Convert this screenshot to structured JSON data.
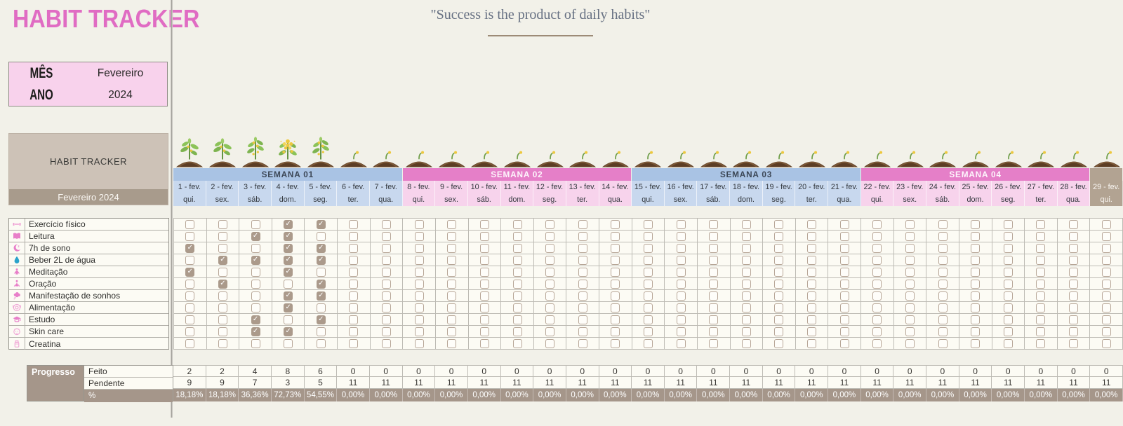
{
  "title": {
    "text": "HABIT TRACKER"
  },
  "quote": {
    "text": "\"Success is the product of daily habits\""
  },
  "month_box": {
    "month_label": "MÊS",
    "month_value": "Fevereiro",
    "year_label": "ANO",
    "year_value": "2024"
  },
  "tracker_box": {
    "title": "HABIT TRACKER",
    "subtitle": "Fevereiro 2024"
  },
  "weeks": [
    {
      "label": "SEMANA 01",
      "span": 7,
      "theme": "blue"
    },
    {
      "label": "SEMANA 02",
      "span": 7,
      "theme": "pink"
    },
    {
      "label": "SEMANA 03",
      "span": 7,
      "theme": "blue"
    },
    {
      "label": "SEMANA 04",
      "span": 7,
      "theme": "pink"
    },
    {
      "label": "",
      "span": 1,
      "theme": "taupe"
    }
  ],
  "days": [
    {
      "date": "1 - fev.",
      "dow": "qui.",
      "theme": "blue"
    },
    {
      "date": "2 - fev.",
      "dow": "sex.",
      "theme": "blue"
    },
    {
      "date": "3 - fev.",
      "dow": "sáb.",
      "theme": "blue"
    },
    {
      "date": "4 - fev.",
      "dow": "dom.",
      "theme": "blue"
    },
    {
      "date": "5 - fev.",
      "dow": "seg.",
      "theme": "blue"
    },
    {
      "date": "6 - fev.",
      "dow": "ter.",
      "theme": "blue"
    },
    {
      "date": "7 - fev.",
      "dow": "qua.",
      "theme": "blue"
    },
    {
      "date": "8 - fev.",
      "dow": "qui.",
      "theme": "pink"
    },
    {
      "date": "9 - fev.",
      "dow": "sex.",
      "theme": "pink"
    },
    {
      "date": "10 - fev.",
      "dow": "sáb.",
      "theme": "pink"
    },
    {
      "date": "11 - fev.",
      "dow": "dom.",
      "theme": "pink"
    },
    {
      "date": "12 - fev.",
      "dow": "seg.",
      "theme": "pink"
    },
    {
      "date": "13 - fev.",
      "dow": "ter.",
      "theme": "pink"
    },
    {
      "date": "14 - fev.",
      "dow": "qua.",
      "theme": "pink"
    },
    {
      "date": "15 - fev.",
      "dow": "qui.",
      "theme": "blue"
    },
    {
      "date": "16 - fev.",
      "dow": "sex.",
      "theme": "blue"
    },
    {
      "date": "17 - fev.",
      "dow": "sáb.",
      "theme": "blue"
    },
    {
      "date": "18 - fev.",
      "dow": "dom.",
      "theme": "blue"
    },
    {
      "date": "19 - fev.",
      "dow": "seg.",
      "theme": "blue"
    },
    {
      "date": "20 - fev.",
      "dow": "ter.",
      "theme": "blue"
    },
    {
      "date": "21 - fev.",
      "dow": "qua.",
      "theme": "blue"
    },
    {
      "date": "22 - fev.",
      "dow": "qui.",
      "theme": "pink"
    },
    {
      "date": "23 - fev.",
      "dow": "sex.",
      "theme": "pink"
    },
    {
      "date": "24 - fev.",
      "dow": "sáb.",
      "theme": "pink"
    },
    {
      "date": "25 - fev.",
      "dow": "dom.",
      "theme": "pink"
    },
    {
      "date": "26 - fev.",
      "dow": "seg.",
      "theme": "pink"
    },
    {
      "date": "27 - fev.",
      "dow": "ter.",
      "theme": "pink"
    },
    {
      "date": "28 - fev.",
      "dow": "qua.",
      "theme": "pink"
    },
    {
      "date": "29 - fev.",
      "dow": "qui.",
      "theme": "taupe"
    }
  ],
  "plant_stages": [
    2,
    2,
    3,
    4,
    3,
    1,
    1,
    1,
    1,
    1,
    1,
    1,
    1,
    1,
    1,
    1,
    1,
    1,
    1,
    1,
    1,
    1,
    1,
    1,
    1,
    1,
    1,
    1,
    1
  ],
  "habits": [
    {
      "icon": "exercise-icon",
      "label": "Exercício físico",
      "checked_days": [
        4,
        5
      ]
    },
    {
      "icon": "book-icon",
      "label": "Leitura",
      "checked_days": [
        3,
        4
      ]
    },
    {
      "icon": "sleep-moon-icon",
      "label": "7h de sono",
      "checked_days": [
        1,
        4,
        5
      ]
    },
    {
      "icon": "water-drop-icon",
      "label": "Beber 2L de água",
      "checked_days": [
        2,
        3,
        4,
        5
      ]
    },
    {
      "icon": "meditation-icon",
      "label": "Meditação",
      "checked_days": [
        1,
        4
      ]
    },
    {
      "icon": "prayer-icon",
      "label": "Oração",
      "checked_days": [
        2,
        5
      ]
    },
    {
      "icon": "dream-cloud-icon",
      "label": "Manifestação de sonhos",
      "checked_days": [
        4,
        5
      ]
    },
    {
      "icon": "meal-plate-icon",
      "label": "Alimentação",
      "checked_days": [
        4
      ]
    },
    {
      "icon": "study-icon",
      "label": "Estudo",
      "checked_days": [
        3,
        5
      ]
    },
    {
      "icon": "skincare-face-icon",
      "label": "Skin care",
      "checked_days": [
        3,
        4
      ]
    },
    {
      "icon": "creatine-jar-icon",
      "label": "Creatina",
      "checked_days": []
    }
  ],
  "progress": {
    "title": "Progresso",
    "feito_label": "Feito",
    "pendente_label": "Pendente",
    "percent_label": "%",
    "feito": [
      2,
      2,
      4,
      8,
      6,
      0,
      0,
      0,
      0,
      0,
      0,
      0,
      0,
      0,
      0,
      0,
      0,
      0,
      0,
      0,
      0,
      0,
      0,
      0,
      0,
      0,
      0,
      0,
      0
    ],
    "pendente": [
      9,
      9,
      7,
      3,
      5,
      11,
      11,
      11,
      11,
      11,
      11,
      11,
      11,
      11,
      11,
      11,
      11,
      11,
      11,
      11,
      11,
      11,
      11,
      11,
      11,
      11,
      11,
      11,
      11
    ],
    "percent": [
      "18,18%",
      "18,18%",
      "36,36%",
      "72,73%",
      "54,55%",
      "0,00%",
      "0,00%",
      "0,00%",
      "0,00%",
      "0,00%",
      "0,00%",
      "0,00%",
      "0,00%",
      "0,00%",
      "0,00%",
      "0,00%",
      "0,00%",
      "0,00%",
      "0,00%",
      "0,00%",
      "0,00%",
      "0,00%",
      "0,00%",
      "0,00%",
      "0,00%",
      "0,00%",
      "0,00%",
      "0,00%",
      "0,00%"
    ]
  },
  "colors": {
    "background": "#f2f1e9",
    "title_pink": "#e06cc3",
    "month_box_pink": "#f8d2ec",
    "week_blue": "#a9c3e4",
    "day_blue": "#c8d8ee",
    "week_pink": "#e57fc8",
    "day_pink": "#f7d3ec",
    "taupe": "#b2a392",
    "brown": "#a5968a",
    "checked_brown": "#ab9a8b",
    "tracker_box": "#cdc2b7",
    "tracker_footer": "#a89b8c"
  }
}
